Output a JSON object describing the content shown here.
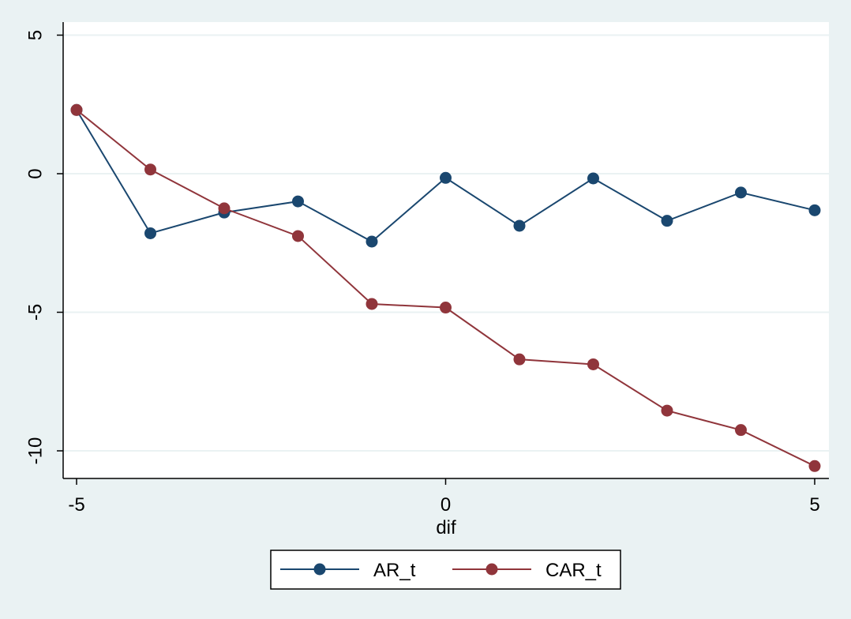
{
  "chart_data": {
    "type": "line",
    "title": "",
    "xlabel": "dif",
    "ylabel": "",
    "x": [
      -5,
      -4,
      -3,
      -2,
      -1,
      0,
      1,
      2,
      3,
      4,
      5
    ],
    "xlim": [
      -5,
      5
    ],
    "ylim": [
      -10,
      5
    ],
    "xticks": [
      -5,
      0,
      5
    ],
    "yticks": [
      5,
      0,
      -5,
      -10
    ],
    "xtick_labels": [
      "-5",
      "0",
      "5"
    ],
    "ytick_labels": [
      "5",
      "0",
      "-5",
      "-10"
    ],
    "grid": "horizontal",
    "legend_position": "bottom",
    "series": [
      {
        "name": "AR_t",
        "color": "#1a476f",
        "values": [
          2.3,
          -2.15,
          -1.4,
          -1.0,
          -2.45,
          -0.15,
          -1.88,
          -0.17,
          -1.7,
          -0.68,
          -1.32
        ]
      },
      {
        "name": "CAR_t",
        "color": "#90353b",
        "values": [
          2.3,
          0.15,
          -1.25,
          -2.25,
          -4.7,
          -4.83,
          -6.7,
          -6.88,
          -8.55,
          -9.25,
          -10.55
        ]
      }
    ]
  }
}
